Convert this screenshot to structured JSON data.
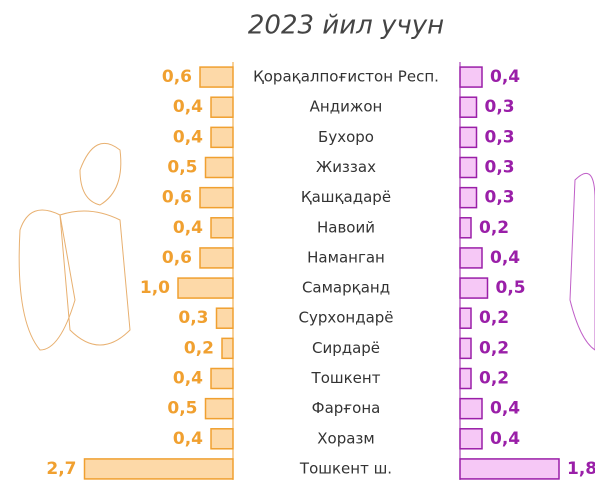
{
  "chart_data": {
    "type": "bar",
    "orientation": "butterfly",
    "title": "2023 йил учун",
    "categories": [
      "Қорақалпоғистон Респ.",
      "Андижон",
      "Бухоро",
      "Жиззах",
      "Қашқадарё",
      "Навоий",
      "Наманган",
      "Самарқанд",
      "Сурхондарё",
      "Сирдарё",
      "Тошкент",
      "Фарғона",
      "Хоразм",
      "Тошкент ш."
    ],
    "series": [
      {
        "color": "#f0a030",
        "fill": "#fdd9a8",
        "values": [
          0.6,
          0.4,
          0.4,
          0.5,
          0.6,
          0.4,
          0.6,
          1.0,
          0.3,
          0.2,
          0.4,
          0.5,
          0.4,
          2.7
        ],
        "value_labels": [
          "0,6",
          "0,4",
          "0,4",
          "0,5",
          "0,6",
          "0,4",
          "0,6",
          "1,0",
          "0,3",
          "0,2",
          "0,4",
          "0,5",
          "0,4",
          "2,7"
        ]
      },
      {
        "color": "#9a1fa8",
        "fill": "#f6c8f6",
        "values": [
          0.4,
          0.3,
          0.3,
          0.3,
          0.3,
          0.2,
          0.4,
          0.5,
          0.2,
          0.2,
          0.2,
          0.4,
          0.4,
          1.8
        ],
        "value_labels": [
          "0,4",
          "0,3",
          "0,3",
          "0,3",
          "0,3",
          "0,2",
          "0,4",
          "0,5",
          "0,2",
          "0,2",
          "0,2",
          "0,4",
          "0,4",
          "1,8"
        ]
      }
    ]
  }
}
